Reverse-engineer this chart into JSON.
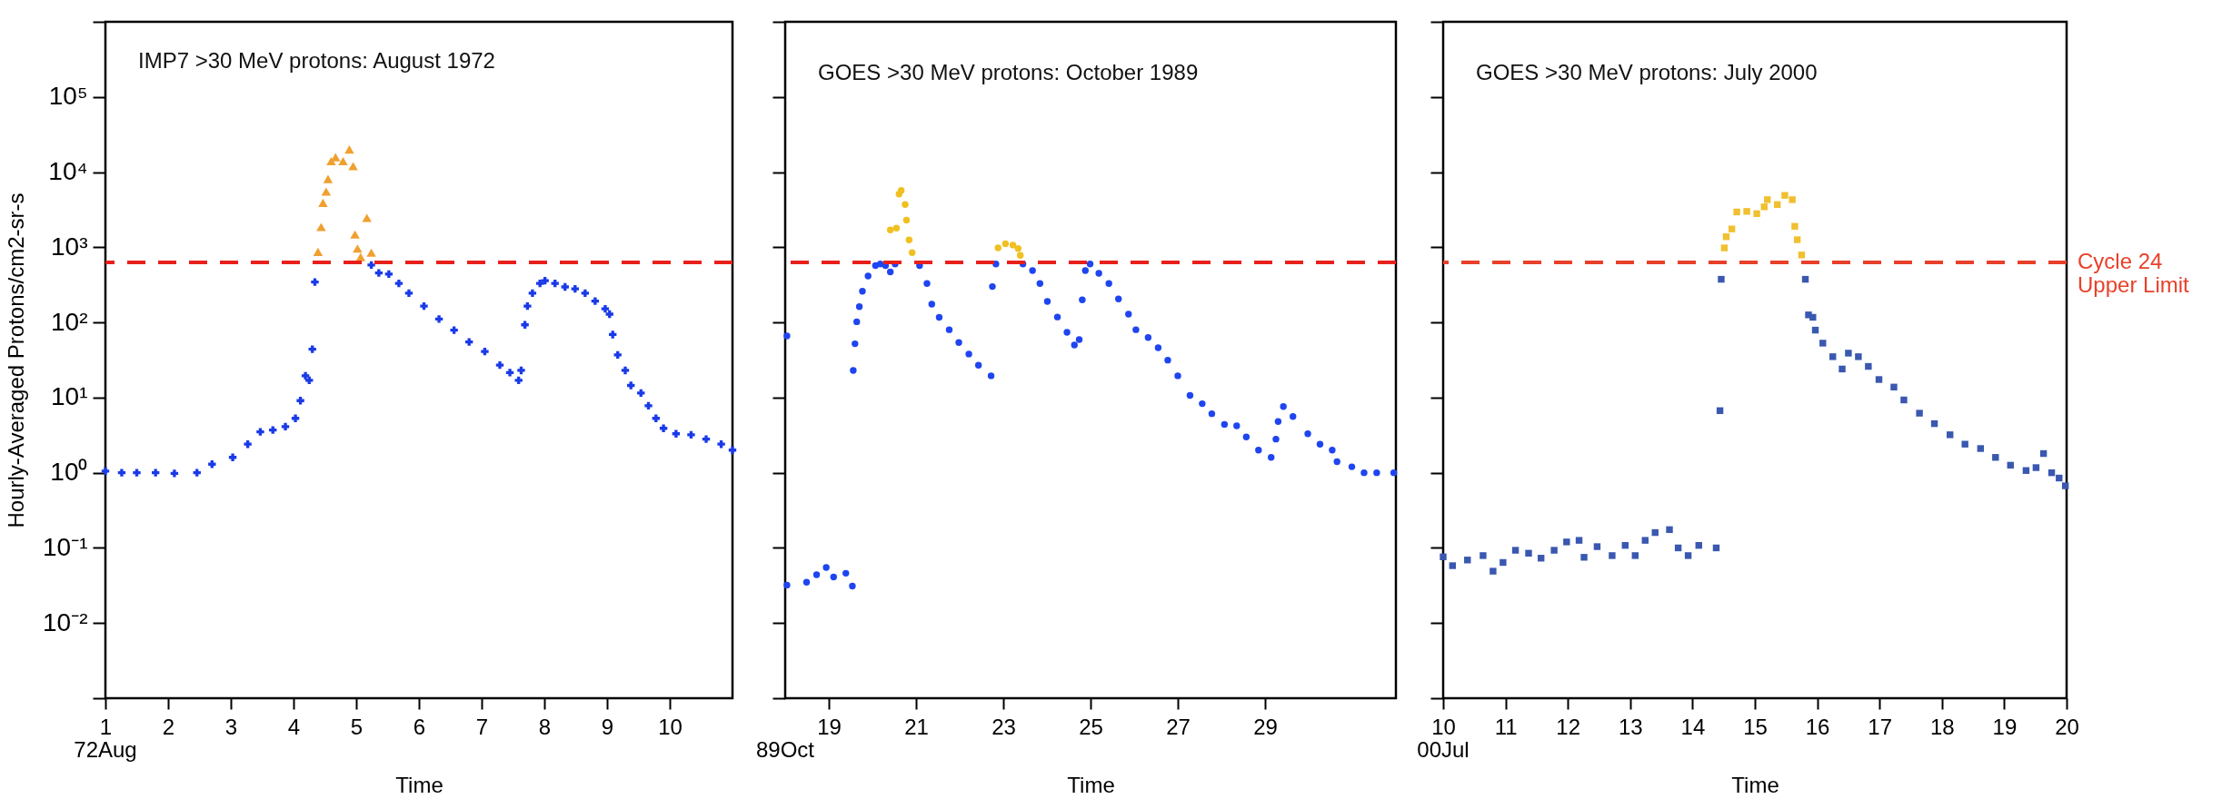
{
  "chart_data": [
    {
      "type": "scatter",
      "title": "IMP7 >30 MeV protons: August 1972",
      "xlabel": "Time",
      "ylabel": "Hourly-Averaged Protons/cm2-sr-s",
      "log": true,
      "xlim": [
        1,
        11
      ],
      "xticks": [
        1,
        2,
        3,
        4,
        5,
        6,
        7,
        8,
        9,
        10
      ],
      "ylim": [
        0.001,
        1000000
      ],
      "yticks": [
        {
          "value": 0.001,
          "label": null
        },
        {
          "value": 0.01,
          "label": "10⁻²"
        },
        {
          "value": 0.1,
          "label": "10⁻¹"
        },
        {
          "value": 1,
          "label": "10⁰"
        },
        {
          "value": 10,
          "label": "10¹"
        },
        {
          "value": 100,
          "label": "10²"
        },
        {
          "value": 1000,
          "label": "10³"
        },
        {
          "value": 10000,
          "label": "10⁴"
        },
        {
          "value": 100000,
          "label": "10⁵"
        },
        {
          "value": 1000000,
          "label": null
        }
      ],
      "annotations": [
        "72Aug"
      ],
      "ref_lines": [
        {
          "axis": "y",
          "value": 630,
          "color": "#e8201c",
          "line_style": "dashed"
        }
      ],
      "series": [
        {
          "color": "#1a3ae8",
          "marker": "cross",
          "x": [
            1.0,
            1.26,
            1.5,
            1.8,
            2.1,
            2.46,
            2.7,
            3.03,
            3.27,
            3.47,
            3.67,
            3.87,
            4.03,
            4.11,
            4.19,
            4.25,
            4.3,
            4.34,
            5.24,
            5.36,
            5.52,
            5.68,
            5.84,
            6.08,
            6.32,
            6.56,
            6.8,
            7.05,
            7.29,
            7.45,
            7.59,
            7.63,
            7.69,
            7.73,
            7.81,
            7.93,
            8.01,
            8.17,
            8.33,
            8.49,
            8.65,
            8.81,
            8.97,
            9.04,
            9.09,
            9.17,
            9.29,
            9.38,
            9.54,
            9.66,
            9.78,
            9.9,
            10.1,
            10.34,
            10.58,
            10.82,
            11.0
          ],
          "values": [
            1.05,
            1.0,
            1.0,
            1.0,
            0.98,
            1.0,
            1.3,
            1.6,
            2.4,
            3.5,
            3.7,
            4.1,
            5.3,
            9.1,
            19.5,
            17,
            44,
            345,
            580,
            455,
            440,
            330,
            245,
            165,
            111,
            79,
            55,
            41,
            27,
            21.5,
            17,
            23,
            93,
            165,
            245,
            330,
            360,
            330,
            297,
            280,
            245,
            192,
            152,
            129,
            69,
            37,
            23,
            14.5,
            11.5,
            7.8,
            5.3,
            3.9,
            3.3,
            3.2,
            2.8,
            2.4,
            2.0
          ]
        },
        {
          "color": "#f0a030",
          "marker": "triangle",
          "x": [
            4.39,
            4.44,
            4.47,
            4.52,
            4.55,
            4.6,
            4.67,
            4.79,
            4.89,
            4.95,
            4.98,
            5.02,
            5.07,
            5.17,
            5.24
          ],
          "values": [
            870,
            1860,
            3900,
            5500,
            8100,
            14000,
            15800,
            14000,
            20000,
            12000,
            1480,
            960,
            740,
            2460,
            850
          ]
        }
      ]
    },
    {
      "type": "scatter",
      "title": "GOES >30 MeV protons: October 1989",
      "xlabel": "Time",
      "log": true,
      "tick_labels": "x",
      "xlim": [
        18,
        32
      ],
      "xticks": [
        19,
        21,
        23,
        25,
        27,
        29
      ],
      "ylim": [
        0.001,
        1000000
      ],
      "yticks": [
        0.001,
        0.01,
        0.1,
        1,
        10,
        100,
        1000,
        10000,
        100000,
        1000000
      ],
      "annotations": [
        "89Oct"
      ],
      "ref_lines": [
        {
          "axis": "y",
          "value": 630,
          "color": "#e8201c",
          "line_style": "dashed"
        }
      ],
      "series": [
        {
          "color": "#1f45f0",
          "marker": "circle",
          "x": [
            18.04,
            18.04,
            18.49,
            18.72,
            18.94,
            19.11,
            19.39,
            19.54,
            19.56,
            19.6,
            19.64,
            19.7,
            19.77,
            19.9,
            20.07,
            20.18,
            20.3,
            20.41,
            20.52,
            21.08,
            21.25,
            21.36,
            21.53,
            21.76,
            21.98,
            22.21,
            22.43,
            22.72,
            22.75,
            22.83,
            23.45,
            23.67,
            23.84,
            24.01,
            24.24,
            24.46,
            24.63,
            24.74,
            24.81,
            24.88,
            24.99,
            25.19,
            25.42,
            25.64,
            25.87,
            26.04,
            26.32,
            26.55,
            26.77,
            27.0,
            27.28,
            27.56,
            27.78,
            28.07,
            28.35,
            28.57,
            28.85,
            29.14,
            29.25,
            29.3,
            29.42,
            29.64,
            29.98,
            30.26,
            30.54,
            30.65,
            30.99,
            31.27,
            31.56,
            31.95
          ],
          "values": [
            66,
            0.032,
            0.035,
            0.044,
            0.055,
            0.041,
            0.046,
            0.031,
            23,
            52,
            102,
            162,
            260,
            415,
            570,
            600,
            570,
            470,
            600,
            570,
            330,
            175,
            117,
            80,
            54,
            38,
            27,
            19.5,
            300,
            600,
            600,
            490,
            330,
            190,
            118,
            74,
            50,
            59,
            200,
            490,
            600,
            450,
            330,
            205,
            129,
            80,
            63,
            46,
            31.5,
            19.5,
            10.7,
            8.3,
            6.1,
            4.4,
            4.2,
            3.0,
            2.0,
            1.6,
            2.8,
            4.8,
            7.6,
            5.6,
            3.3,
            2.4,
            2.0,
            1.4,
            1.2,
            1.0,
            1.0,
            1.0
          ]
        },
        {
          "color": "#f0c020",
          "marker": "circle",
          "x": [
            20.41,
            20.55,
            20.61,
            20.66,
            20.75,
            20.78,
            20.84,
            20.91,
            22.88,
            23.05,
            23.22,
            23.34,
            23.39
          ],
          "values": [
            1700,
            1800,
            5100,
            5700,
            3700,
            2300,
            1250,
            850,
            980,
            1110,
            1070,
            960,
            780
          ]
        }
      ]
    },
    {
      "type": "scatter",
      "title": "GOES >30 MeV protons: July 2000",
      "xlabel": "Time",
      "log": true,
      "tick_labels": "x",
      "xlim": [
        10,
        20
      ],
      "xticks": [
        10,
        11,
        12,
        13,
        14,
        15,
        16,
        17,
        18,
        19,
        20
      ],
      "ylim": [
        0.001,
        1000000
      ],
      "yticks": [
        0.001,
        0.01,
        0.1,
        1,
        10,
        100,
        1000,
        10000,
        100000,
        1000000
      ],
      "annotations": [
        "00Jul"
      ],
      "ref_lines": [
        {
          "axis": "y",
          "value": 630,
          "color": "#e8402a",
          "line_style": "dashed",
          "label": "Cycle 24\nUpper Limit"
        }
      ],
      "series": [
        {
          "color": "#3a58b0",
          "marker": "square",
          "x": [
            10.0,
            10.15,
            10.39,
            10.64,
            10.8,
            10.96,
            11.16,
            11.37,
            11.57,
            11.78,
            11.98,
            12.18,
            12.26,
            12.47,
            12.71,
            12.92,
            13.08,
            13.24,
            13.4,
            13.63,
            13.77,
            13.93,
            14.1,
            14.38,
            14.44,
            14.46,
            15.81,
            15.86,
            15.93,
            15.97,
            16.09,
            16.25,
            16.4,
            16.5,
            16.66,
            16.82,
            16.99,
            17.23,
            17.39,
            17.64,
            17.88,
            18.13,
            18.37,
            18.62,
            18.86,
            19.1,
            19.35,
            19.51,
            19.63,
            19.76,
            19.88,
            19.98
          ],
          "values": [
            0.076,
            0.058,
            0.069,
            0.079,
            0.049,
            0.064,
            0.093,
            0.085,
            0.073,
            0.093,
            0.12,
            0.126,
            0.075,
            0.104,
            0.079,
            0.108,
            0.079,
            0.126,
            0.16,
            0.175,
            0.1,
            0.079,
            0.108,
            0.1,
            6.7,
            375,
            375,
            126,
            117,
            79,
            53,
            35,
            24,
            39,
            35,
            26,
            17.4,
            13.8,
            9.3,
            6.2,
            4.5,
            3.2,
            2.4,
            2.1,
            1.6,
            1.26,
            1.07,
            1.17,
            1.8,
            1.0,
            0.85,
            0.67
          ]
        },
        {
          "color": "#f0c030",
          "marker": "square",
          "x": [
            14.51,
            14.54,
            14.63,
            14.71,
            14.87,
            15.03,
            15.15,
            15.2,
            15.36,
            15.48,
            15.6,
            15.64,
            15.68,
            15.75
          ],
          "values": [
            980,
            1380,
            1750,
            2950,
            3000,
            2800,
            3450,
            4300,
            3700,
            4900,
            4300,
            1900,
            1260,
            790
          ]
        }
      ]
    }
  ]
}
